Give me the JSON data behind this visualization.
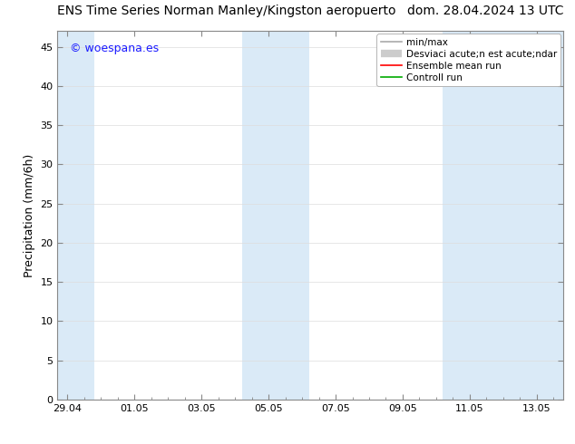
{
  "title_left": "ENS Time Series Norman Manley/Kingston aeropuerto",
  "title_right": "dom. 28.04.2024 13 UTC",
  "ylabel": "Precipitation (mm/6h)",
  "watermark": "© woespana.es",
  "watermark_color": "#1a1aff",
  "background_color": "#ffffff",
  "plot_bg_color": "#ffffff",
  "ylim": [
    0,
    47
  ],
  "yticks": [
    0,
    5,
    10,
    15,
    20,
    25,
    30,
    35,
    40,
    45
  ],
  "xtick_labels": [
    "29.04",
    "01.05",
    "03.05",
    "05.05",
    "07.05",
    "09.05",
    "11.05",
    "13.05"
  ],
  "xtick_positions": [
    0,
    2,
    4,
    6,
    8,
    10,
    12,
    14
  ],
  "xmin": -0.3,
  "xmax": 14.8,
  "shaded_bands": [
    {
      "xstart": -0.3,
      "xend": 0.8,
      "color": "#daeaf7"
    },
    {
      "xstart": 5.2,
      "xend": 7.2,
      "color": "#daeaf7"
    },
    {
      "xstart": 11.2,
      "xend": 14.8,
      "color": "#daeaf7"
    }
  ],
  "legend_labels": [
    "min/max",
    "Desviaci acute;n est acute;ndar",
    "Ensemble mean run",
    "Controll run"
  ],
  "legend_colors": [
    "#aaaaaa",
    "#cccccc",
    "#ff0000",
    "#00aa00"
  ],
  "legend_lws": [
    1.2,
    6,
    1.2,
    1.2
  ],
  "title_fontsize": 10,
  "watermark_fontsize": 9,
  "ylabel_fontsize": 9,
  "tick_fontsize": 8,
  "legend_fontsize": 7.5
}
